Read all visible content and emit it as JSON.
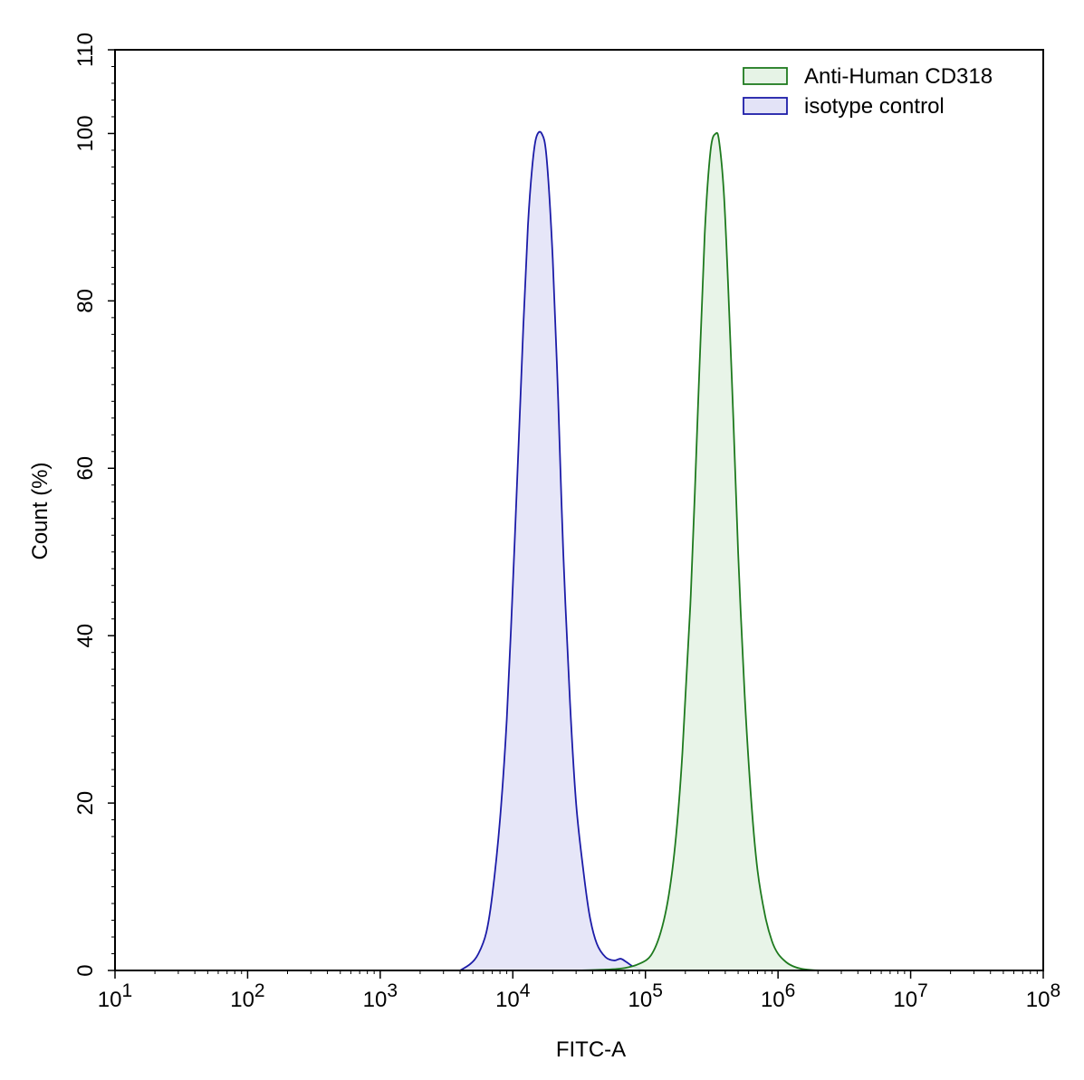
{
  "chart_data": {
    "type": "area",
    "title": "",
    "xlabel": "FITC-A",
    "ylabel": "Count (%)",
    "x_scale": "log10",
    "xlim": [
      10,
      100000000
    ],
    "ylim": [
      0,
      110
    ],
    "x_ticks": [
      {
        "value": 10,
        "base": "10",
        "exp": "1"
      },
      {
        "value": 100,
        "base": "10",
        "exp": "2"
      },
      {
        "value": 1000,
        "base": "10",
        "exp": "3"
      },
      {
        "value": 10000,
        "base": "10",
        "exp": "4"
      },
      {
        "value": 100000,
        "base": "10",
        "exp": "5"
      },
      {
        "value": 1000000,
        "base": "10",
        "exp": "6"
      },
      {
        "value": 10000000,
        "base": "10",
        "exp": "7"
      },
      {
        "value": 100000000,
        "base": "10",
        "exp": "8"
      }
    ],
    "y_ticks": [
      0,
      20,
      40,
      60,
      80,
      100,
      110
    ],
    "grid": false,
    "legend_position": "top-right",
    "series": [
      {
        "name": "Anti-Human CD318",
        "stroke": "#1e7a1e",
        "fill": "#e6f3e6",
        "x": [
          30000,
          50000,
          70000,
          90000,
          110000,
          130000,
          150000,
          170000,
          190000,
          220000,
          250000,
          280000,
          310000,
          340000,
          360000,
          390000,
          420000,
          460000,
          500000,
          560000,
          630000,
          700000,
          800000,
          900000,
          1000000,
          1150000,
          1300000,
          1500000,
          1800000,
          2200000
        ],
        "values": [
          0,
          0.1,
          0.3,
          0.8,
          1.8,
          4.5,
          9,
          16,
          26,
          45,
          68,
          88,
          98,
          100,
          99,
          93,
          82,
          66,
          50,
          33,
          20,
          12,
          6.5,
          3.5,
          2,
          1,
          0.5,
          0.2,
          0.05,
          0
        ]
      },
      {
        "name": "isotype control",
        "stroke": "#1c1ca8",
        "fill": "#e3e3f7",
        "x": [
          4000,
          4800,
          5500,
          6300,
          7000,
          8000,
          9000,
          10000,
          11000,
          12000,
          13000,
          14000,
          15000,
          16500,
          18000,
          20000,
          22000,
          24000,
          27000,
          30000,
          34000,
          38000,
          43000,
          50000,
          58000,
          65000,
          72000,
          80000,
          90000,
          100000
        ],
        "values": [
          0,
          0.8,
          2,
          4.5,
          9,
          18,
          30,
          46,
          62,
          77,
          89,
          96,
          99.5,
          100,
          97,
          85,
          68,
          50,
          32,
          20,
          12,
          6.5,
          3.2,
          1.6,
          1.2,
          1.4,
          1.0,
          0.5,
          0.2,
          0
        ]
      }
    ]
  }
}
